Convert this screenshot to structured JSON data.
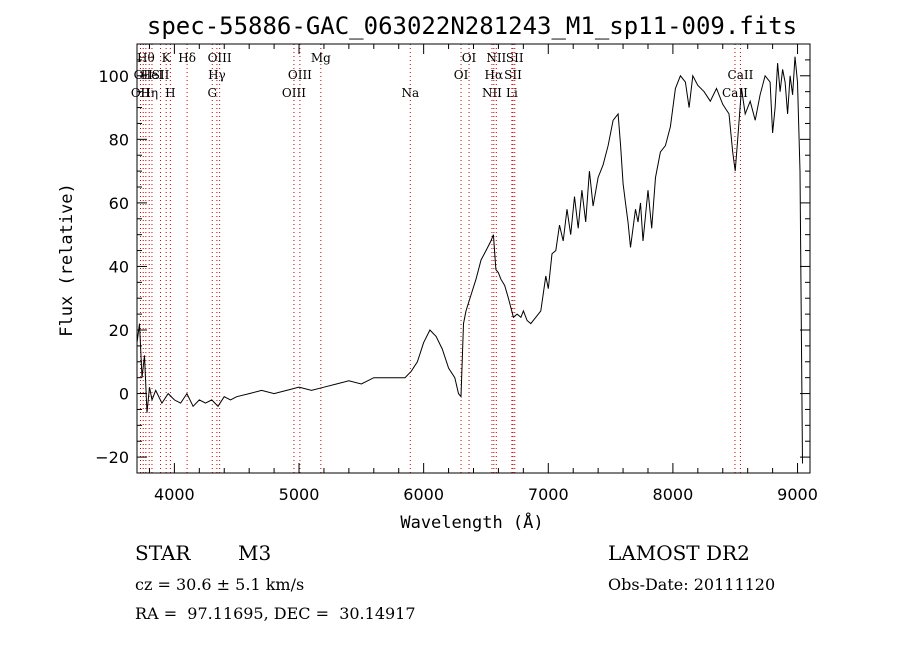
{
  "chart_data": {
    "type": "line",
    "title": "spec-55886-GAC_063022N281243_M1_sp11-009.fits",
    "xlabel": "Wavelength (Å)",
    "ylabel": "Flux (relative)",
    "xlim": [
      3700,
      9100
    ],
    "ylim": [
      -25,
      110
    ],
    "xticks": [
      4000,
      5000,
      6000,
      7000,
      8000,
      9000
    ],
    "yticks": [
      -20,
      0,
      20,
      40,
      60,
      80,
      100
    ],
    "grid": false,
    "series": [
      {
        "x": [
          3700,
          3720,
          3740,
          3760,
          3780,
          3800,
          3820,
          3850,
          3900,
          3950,
          4000,
          4050,
          4100,
          4150,
          4200,
          4250,
          4300,
          4350,
          4400,
          4450,
          4500,
          4600,
          4700,
          4800,
          4900,
          5000,
          5100,
          5200,
          5300,
          5400,
          5500,
          5600,
          5700,
          5800,
          5850,
          5900,
          5950,
          6000,
          6050,
          6100,
          6150,
          6200,
          6250,
          6280,
          6300,
          6320,
          6340,
          6380,
          6420,
          6460,
          6500,
          6540,
          6560,
          6580,
          6600,
          6620,
          6650,
          6680,
          6700,
          6720,
          6750,
          6780,
          6800,
          6830,
          6860,
          6900,
          6940,
          6980,
          7000,
          7030,
          7060,
          7090,
          7120,
          7150,
          7180,
          7210,
          7240,
          7270,
          7300,
          7330,
          7360,
          7400,
          7440,
          7480,
          7520,
          7560,
          7580,
          7600,
          7620,
          7640,
          7660,
          7680,
          7700,
          7720,
          7740,
          7760,
          7780,
          7800,
          7830,
          7860,
          7900,
          7940,
          7980,
          8020,
          8060,
          8100,
          8130,
          8160,
          8200,
          8250,
          8300,
          8350,
          8400,
          8450,
          8480,
          8500,
          8520,
          8550,
          8580,
          8620,
          8660,
          8700,
          8740,
          8780,
          8800,
          8820,
          8840,
          8860,
          8880,
          8900,
          8920,
          8940,
          8960,
          8980,
          9000,
          9020,
          9040
        ],
        "values": [
          16,
          22,
          5,
          12,
          -6,
          2,
          -2,
          1,
          -3,
          0,
          -2,
          -3,
          0,
          -4,
          -2,
          -3,
          -2,
          -4,
          -1,
          -2,
          -1,
          0,
          1,
          0,
          1,
          2,
          1,
          2,
          3,
          4,
          3,
          5,
          5,
          5,
          5,
          7,
          10,
          16,
          20,
          18,
          14,
          8,
          5,
          0,
          -1,
          22,
          26,
          31,
          36,
          42,
          45,
          48,
          50,
          39,
          38,
          36,
          34,
          30,
          27,
          24,
          25,
          24,
          26,
          23,
          22,
          24,
          26,
          37,
          33,
          44,
          45,
          53,
          48,
          58,
          50,
          62,
          52,
          64,
          54,
          70,
          59,
          68,
          72,
          78,
          86,
          88,
          78,
          66,
          60,
          54,
          46,
          52,
          58,
          54,
          60,
          48,
          56,
          64,
          52,
          68,
          76,
          78,
          84,
          96,
          100,
          98,
          90,
          100,
          97,
          95,
          92,
          96,
          91,
          88,
          76,
          70,
          80,
          96,
          88,
          92,
          86,
          94,
          100,
          98,
          82,
          90,
          104,
          95,
          102,
          98,
          88,
          100,
          94,
          106,
          98,
          70,
          -22
        ]
      }
    ],
    "lines": [
      {
        "wl": 3728,
        "label": "OII",
        "row": 3
      },
      {
        "wl": 3750,
        "label": "OII",
        "row": 2
      },
      {
        "wl": 3771,
        "label": "Hθ",
        "row": 1
      },
      {
        "wl": 3798,
        "label": "Hη",
        "row": 3
      },
      {
        "wl": 3820,
        "label": "HeI",
        "row": 2
      },
      {
        "wl": 3889,
        "label": "SII",
        "row": 2
      },
      {
        "wl": 3934,
        "label": "K",
        "row": 1
      },
      {
        "wl": 3968,
        "label": "H",
        "row": 3
      },
      {
        "wl": 4102,
        "label": "Hδ",
        "row": 1
      },
      {
        "wl": 4304,
        "label": "G",
        "row": 3
      },
      {
        "wl": 4341,
        "label": "Hγ",
        "row": 2
      },
      {
        "wl": 4363,
        "label": "OIII",
        "row": 1
      },
      {
        "wl": 4959,
        "label": "OIII",
        "row": 3
      },
      {
        "wl": 5007,
        "label": "OIII",
        "row": 2
      },
      {
        "wl": 5175,
        "label": "Mg",
        "row": 1
      },
      {
        "wl": 5893,
        "label": "Na",
        "row": 3
      },
      {
        "wl": 6300,
        "label": "OI",
        "row": 2
      },
      {
        "wl": 6364,
        "label": "OI",
        "row": 1
      },
      {
        "wl": 6548,
        "label": "NII",
        "row": 3
      },
      {
        "wl": 6563,
        "label": "Hα",
        "row": 2
      },
      {
        "wl": 6583,
        "label": "NII",
        "row": 1
      },
      {
        "wl": 6708,
        "label": "Li",
        "row": 3
      },
      {
        "wl": 6717,
        "label": "SII",
        "row": 2
      },
      {
        "wl": 6731,
        "label": "SII",
        "row": 1
      },
      {
        "wl": 8498,
        "label": "CaII",
        "row": 3
      },
      {
        "wl": 8542,
        "label": "CaII",
        "row": 2
      }
    ]
  },
  "info": {
    "object_class": "STAR",
    "subclass": "M3",
    "survey": "LAMOST DR2",
    "cz": "cz = 30.6 ± 5.1 km/s",
    "obs_date": "Obs-Date: 20111120",
    "coords": "RA =  97.11695, DEC =  30.14917"
  }
}
